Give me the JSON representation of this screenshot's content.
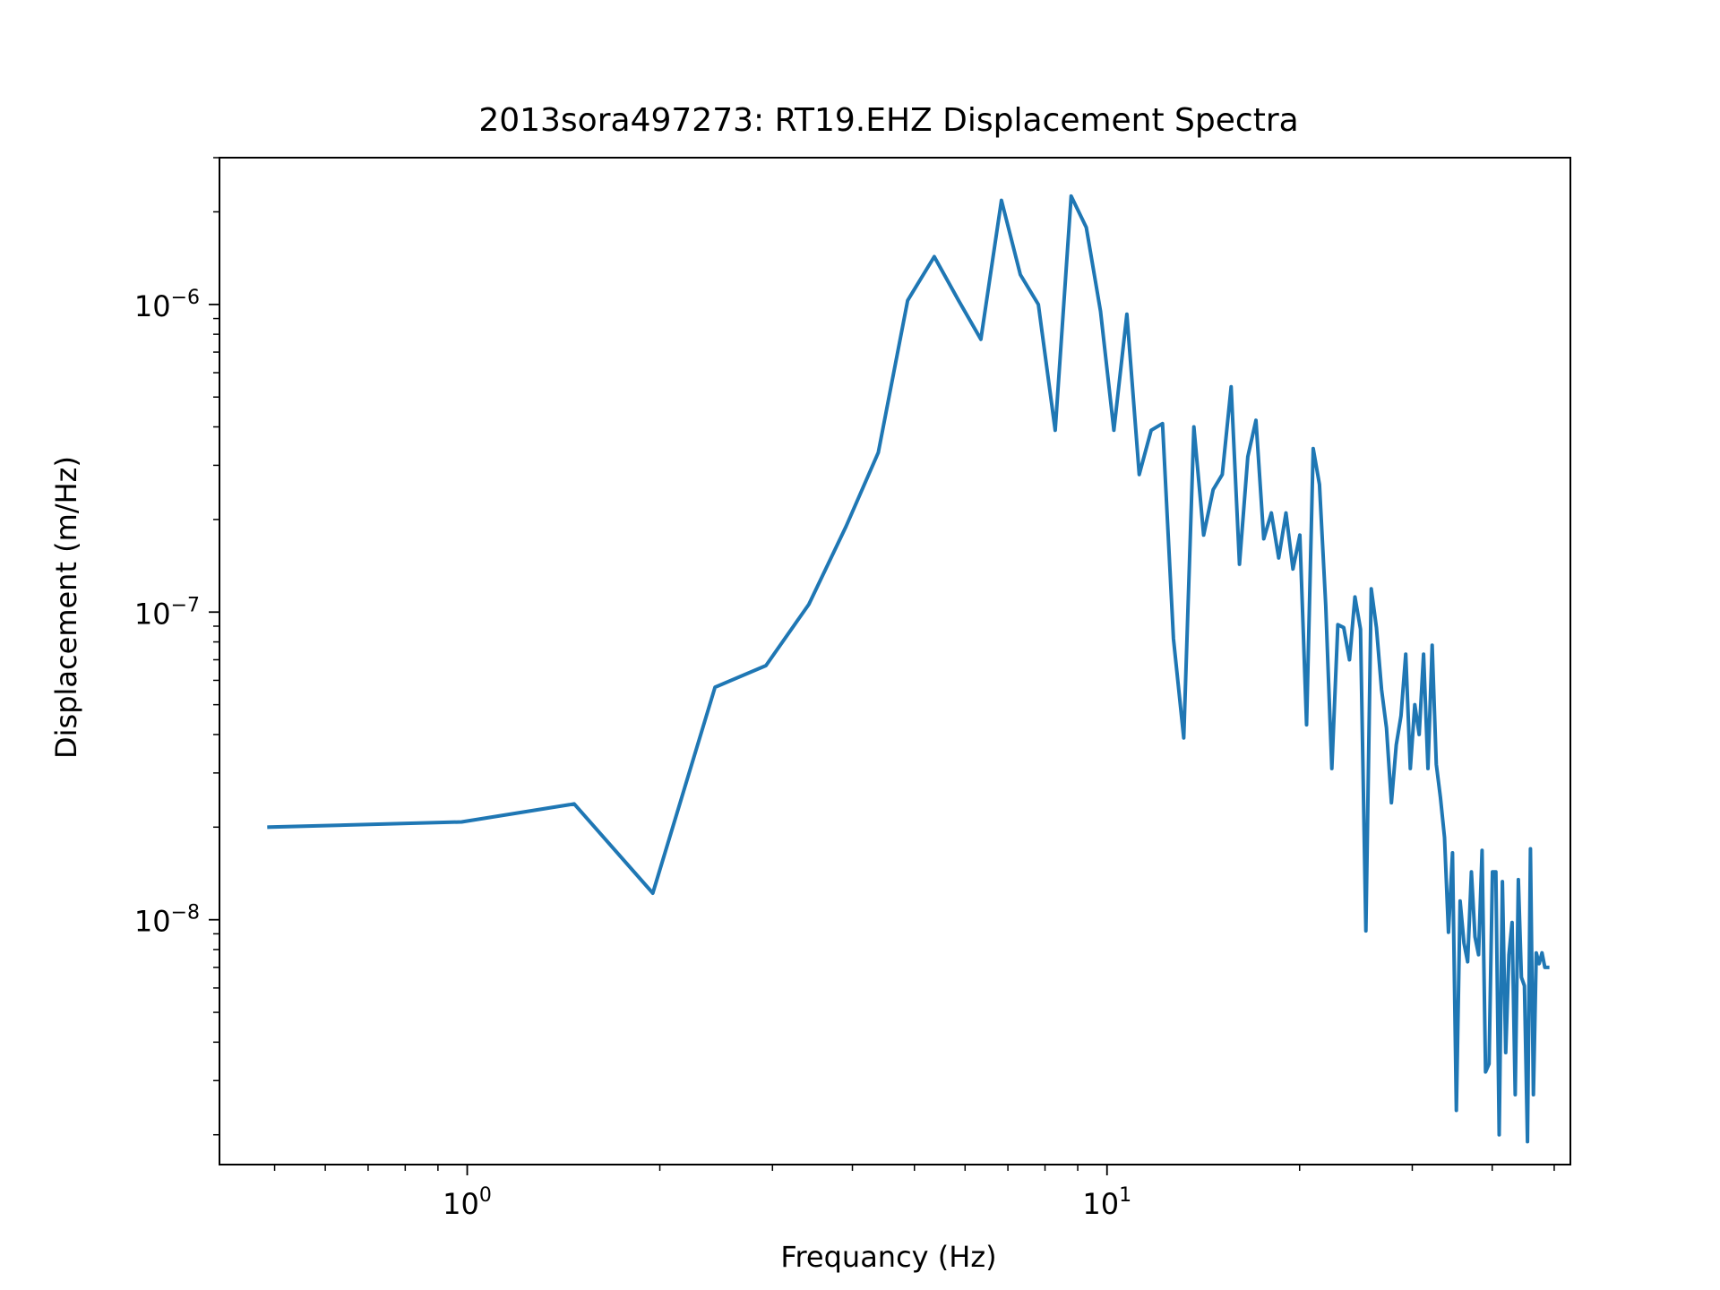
{
  "chart_data": {
    "type": "line",
    "title": "2013sora497273: RT19.EHZ Displacement Spectra",
    "xlabel": "Frequancy (Hz)",
    "ylabel": "Displacement (m/Hz)",
    "xscale": "log",
    "yscale": "log",
    "xlim": [
      0.41,
      53
    ],
    "ylim": [
      1.6e-09,
      3e-06
    ],
    "grid": false,
    "legend": "none",
    "x_ticks": [
      {
        "base": "10",
        "exp": "0",
        "value": 1
      },
      {
        "base": "10",
        "exp": "1",
        "value": 10
      }
    ],
    "y_ticks": [
      {
        "base": "10",
        "exp": "−8",
        "value": 1e-08
      },
      {
        "base": "10",
        "exp": "−7",
        "value": 1e-07
      },
      {
        "base": "10",
        "exp": "−6",
        "value": 1e-06
      }
    ],
    "series": [
      {
        "color": "#1f77b4",
        "x": [
          0.49,
          0.98,
          1.47,
          1.95,
          2.44,
          2.93,
          3.42,
          3.91,
          4.39,
          4.88,
          5.37,
          5.86,
          6.35,
          6.84,
          7.32,
          7.81,
          8.3,
          8.79,
          9.28,
          9.77,
          10.25,
          10.74,
          11.23,
          11.72,
          12.21,
          12.7,
          13.18,
          13.67,
          14.16,
          14.65,
          15.14,
          15.63,
          16.11,
          16.6,
          17.09,
          17.58,
          18.07,
          18.55,
          19.04,
          19.53,
          20.02,
          20.51,
          21.0,
          21.48,
          21.97,
          22.46,
          22.95,
          23.44,
          23.93,
          24.41,
          24.9,
          25.39,
          25.88,
          26.37,
          26.86,
          27.34,
          27.83,
          28.32,
          28.81,
          29.3,
          29.79,
          30.27,
          30.76,
          31.25,
          31.74,
          32.23,
          32.71,
          33.2,
          33.69,
          34.18,
          34.67,
          35.16,
          35.64,
          36.13,
          36.62,
          37.11,
          37.6,
          38.09,
          38.57,
          39.06,
          39.55,
          40.04,
          40.53,
          41.02,
          41.5,
          41.99,
          42.48,
          42.97,
          43.46,
          43.95,
          44.43,
          44.92,
          45.41,
          45.9,
          46.39,
          46.88,
          47.36,
          47.85,
          48.34,
          48.83
        ],
        "y": [
          2e-08,
          2.08e-08,
          2.38e-08,
          1.22e-08,
          5.7e-08,
          6.7e-08,
          1.06e-07,
          1.9e-07,
          3.3e-07,
          1.03e-06,
          1.43e-06,
          1.03e-06,
          7.7e-07,
          2.18e-06,
          1.25e-06,
          1e-06,
          3.9e-07,
          2.25e-06,
          1.78e-06,
          9.5e-07,
          3.9e-07,
          9.3e-07,
          2.8e-07,
          3.9e-07,
          4.1e-07,
          8.2e-08,
          3.9e-08,
          4e-07,
          1.78e-07,
          2.5e-07,
          2.8e-07,
          5.4e-07,
          1.43e-07,
          3.2e-07,
          4.2e-07,
          1.73e-07,
          2.1e-07,
          1.5e-07,
          2.1e-07,
          1.38e-07,
          1.78e-07,
          4.3e-08,
          3.4e-07,
          2.6e-07,
          1.05e-07,
          3.1e-08,
          9.1e-08,
          8.9e-08,
          7e-08,
          1.12e-07,
          8.8e-08,
          9.2e-09,
          1.19e-07,
          8.9e-08,
          5.6e-08,
          4.2e-08,
          2.4e-08,
          3.7e-08,
          4.6e-08,
          7.3e-08,
          3.1e-08,
          5e-08,
          4e-08,
          7.3e-08,
          3.1e-08,
          7.8e-08,
          3.2e-08,
          2.5e-08,
          1.85e-08,
          9.1e-09,
          1.65e-08,
          2.4e-09,
          1.15e-08,
          8.4e-09,
          7.3e-09,
          1.43e-08,
          8.8e-09,
          7.7e-09,
          1.68e-08,
          3.2e-09,
          3.4e-09,
          1.43e-08,
          1.43e-08,
          2e-09,
          1.33e-08,
          3.7e-09,
          7.7e-09,
          9.8e-09,
          2.7e-09,
          1.35e-08,
          6.5e-09,
          6.1e-09,
          1.9e-09,
          1.7e-08,
          2.7e-09,
          7.8e-09,
          7.2e-09,
          7.8e-09,
          7e-09,
          7e-09
        ]
      }
    ]
  }
}
